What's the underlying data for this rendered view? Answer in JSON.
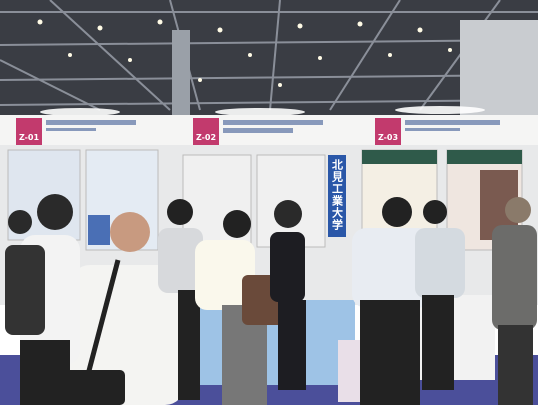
{
  "booths": [
    {
      "code": "Z-01"
    },
    {
      "code": "Z-02"
    },
    {
      "code": "Z-03"
    }
  ],
  "banner": "北見工業大学"
}
